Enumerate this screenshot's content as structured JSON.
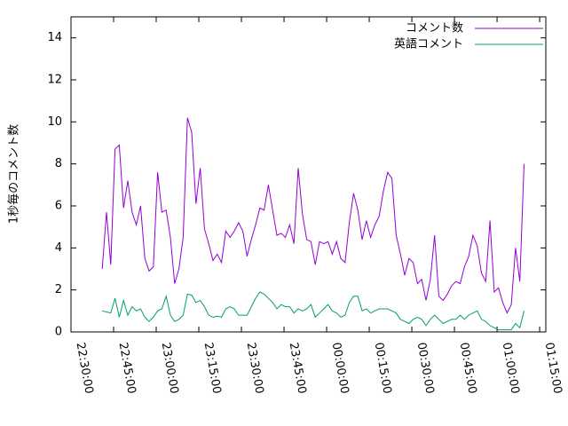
{
  "chart_data": {
    "type": "line",
    "y_label": "1秒毎のコメント数",
    "legend": "top-right",
    "x": [
      "22:41:00",
      "22:42:30",
      "22:44:00",
      "22:45:30",
      "22:47:00",
      "22:48:30",
      "22:50:00",
      "22:51:30",
      "22:53:00",
      "22:54:30",
      "22:56:00",
      "22:57:30",
      "22:59:00",
      "23:00:30",
      "23:02:00",
      "23:03:30",
      "23:05:00",
      "23:06:30",
      "23:08:00",
      "23:09:30",
      "23:11:00",
      "23:12:30",
      "23:14:00",
      "23:15:30",
      "23:17:00",
      "23:18:30",
      "23:20:00",
      "23:21:30",
      "23:23:00",
      "23:24:30",
      "23:26:00",
      "23:27:30",
      "23:29:00",
      "23:30:30",
      "23:32:00",
      "23:33:30",
      "23:35:00",
      "23:36:30",
      "23:38:00",
      "23:39:30",
      "23:41:00",
      "23:42:30",
      "23:44:00",
      "23:45:30",
      "23:47:00",
      "23:48:30",
      "23:50:00",
      "23:51:30",
      "23:53:00",
      "23:54:30",
      "23:56:00",
      "23:57:30",
      "23:59:00",
      "00:00:30",
      "00:02:00",
      "00:03:30",
      "00:05:00",
      "00:06:30",
      "00:08:00",
      "00:09:30",
      "00:11:00",
      "00:12:30",
      "00:14:00",
      "00:15:30",
      "00:17:00",
      "00:18:30",
      "00:20:00",
      "00:21:30",
      "00:23:00",
      "00:24:30",
      "00:26:00",
      "00:27:30",
      "00:29:00",
      "00:30:30",
      "00:32:00",
      "00:33:30",
      "00:35:00",
      "00:36:30",
      "00:38:00",
      "00:39:30",
      "00:41:00",
      "00:42:30",
      "00:44:00",
      "00:45:30",
      "00:47:00",
      "00:48:30",
      "00:50:00",
      "00:51:30",
      "00:53:00",
      "00:54:30",
      "00:56:00",
      "00:57:30",
      "00:59:00",
      "01:00:30",
      "01:02:00",
      "01:03:30",
      "01:05:00",
      "01:06:30",
      "01:08:00",
      "01:09:30"
    ],
    "series": [
      {
        "name": "コメント数",
        "color": "#9400d3",
        "values": [
          3.0,
          5.7,
          3.2,
          8.7,
          8.9,
          5.9,
          7.2,
          5.7,
          5.1,
          6.0,
          3.5,
          2.9,
          3.1,
          7.6,
          5.7,
          5.8,
          4.5,
          2.3,
          3.0,
          4.5,
          10.2,
          9.5,
          6.1,
          7.8,
          4.9,
          4.2,
          3.4,
          3.7,
          3.3,
          4.8,
          4.5,
          4.8,
          5.2,
          4.8,
          3.6,
          4.4,
          5.1,
          5.9,
          5.8,
          7.0,
          5.8,
          4.6,
          4.7,
          4.5,
          5.1,
          4.2,
          7.8,
          5.6,
          4.4,
          4.3,
          3.2,
          4.3,
          4.2,
          4.3,
          3.7,
          4.3,
          3.5,
          3.3,
          5.2,
          6.6,
          5.8,
          4.4,
          5.3,
          4.5,
          5.1,
          5.5,
          6.7,
          7.6,
          7.3,
          4.6,
          3.7,
          2.7,
          3.5,
          3.3,
          2.3,
          2.5,
          1.5,
          2.5,
          4.6,
          1.7,
          1.5,
          1.8,
          2.2,
          2.4,
          2.3,
          3.1,
          3.6,
          4.6,
          4.1,
          2.8,
          2.4,
          5.3,
          1.9,
          2.1,
          1.4,
          0.9,
          1.3,
          4.0,
          2.4,
          8.0
        ]
      },
      {
        "name": "英語コメント",
        "color": "#009e73",
        "values": [
          1.0,
          0.95,
          0.9,
          1.6,
          0.7,
          1.5,
          0.8,
          1.2,
          1.0,
          1.1,
          0.7,
          0.5,
          0.7,
          1.0,
          1.1,
          1.7,
          0.8,
          0.5,
          0.6,
          0.8,
          1.8,
          1.75,
          1.4,
          1.5,
          1.2,
          0.8,
          0.7,
          0.75,
          0.7,
          1.1,
          1.2,
          1.1,
          0.8,
          0.8,
          0.8,
          1.2,
          1.6,
          1.9,
          1.8,
          1.6,
          1.4,
          1.1,
          1.3,
          1.2,
          1.2,
          0.9,
          1.1,
          1.0,
          1.1,
          1.3,
          0.7,
          0.9,
          1.1,
          1.3,
          1.0,
          0.9,
          0.7,
          0.8,
          1.4,
          1.7,
          1.7,
          1.0,
          1.1,
          0.9,
          1.0,
          1.1,
          1.1,
          1.1,
          1.0,
          0.9,
          0.6,
          0.5,
          0.4,
          0.6,
          0.7,
          0.6,
          0.3,
          0.6,
          0.8,
          0.6,
          0.4,
          0.5,
          0.6,
          0.6,
          0.8,
          0.6,
          0.8,
          0.9,
          1.0,
          0.6,
          0.5,
          0.3,
          0.2,
          0.1,
          0.1,
          0.1,
          0.1,
          0.4,
          0.2,
          1.0
        ]
      }
    ],
    "xlim": [
      "22:30:00",
      "01:17:10"
    ],
    "xticks": [
      "22:30:00",
      "22:45:00",
      "23:00:00",
      "23:15:00",
      "23:30:00",
      "23:45:00",
      "00:00:00",
      "00:15:00",
      "00:30:00",
      "00:45:00",
      "01:00:00",
      "01:15:00"
    ],
    "ylim": [
      0,
      15
    ],
    "yticks": [
      0,
      2,
      4,
      6,
      8,
      10,
      12,
      14
    ]
  }
}
